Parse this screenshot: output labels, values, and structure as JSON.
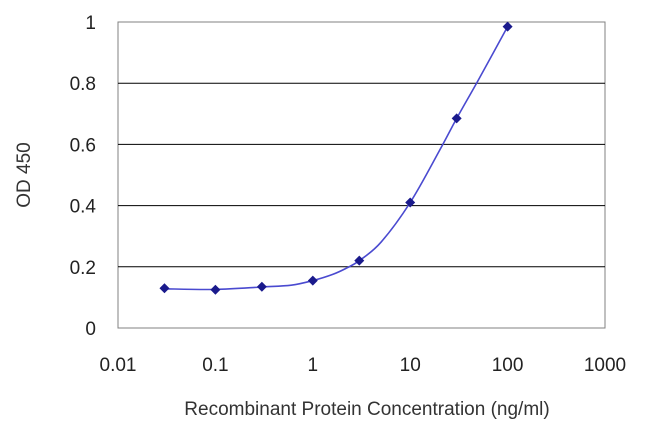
{
  "chart_data": {
    "type": "scatter",
    "title": "",
    "xlabel": "Recombinant Protein Concentration (ng/ml)",
    "ylabel": "OD 450",
    "xscale": "log",
    "xlim": [
      0.01,
      1000
    ],
    "ylim": [
      0,
      1
    ],
    "x_ticks": [
      "0.01",
      "0.1",
      "1",
      "10",
      "100",
      "1000"
    ],
    "y_ticks": [
      "0",
      "0.2",
      "0.4",
      "0.6",
      "0.8",
      "1"
    ],
    "grid": "horizontal",
    "legend": "none",
    "colors": {
      "series": "#1a1a8c",
      "curve": "#4a4ad0",
      "grid": "#000000",
      "frame": "#808080"
    },
    "series": [
      {
        "x": [
          0.03,
          0.1,
          0.3,
          1,
          3,
          10,
          30,
          100
        ],
        "y": [
          0.13,
          0.125,
          0.135,
          0.155,
          0.22,
          0.41,
          0.685,
          0.985
        ]
      }
    ],
    "fit_curve": {
      "x": [
        0.03,
        0.1,
        0.3,
        0.6,
        1,
        1.6,
        2.2,
        3,
        5,
        10,
        20,
        30,
        50,
        100
      ],
      "y": [
        0.128,
        0.126,
        0.134,
        0.14,
        0.155,
        0.175,
        0.195,
        0.22,
        0.28,
        0.41,
        0.58,
        0.685,
        0.81,
        0.985
      ]
    }
  }
}
